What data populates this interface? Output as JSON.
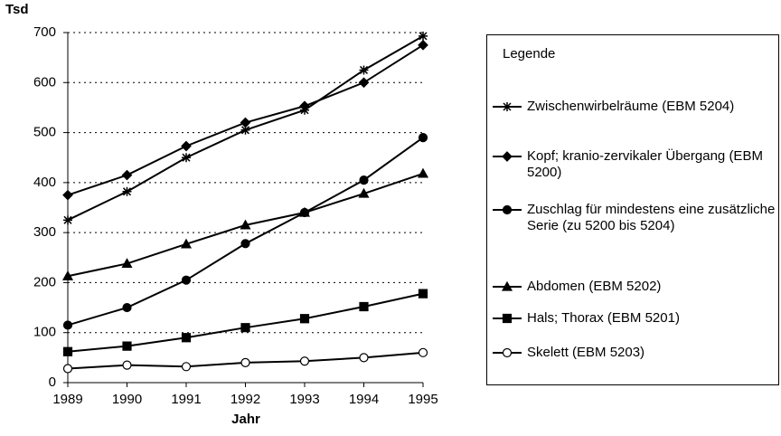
{
  "chart_data": {
    "type": "line",
    "y_label": "Tsd",
    "x_label": "Jahr",
    "legend_title": "Legende",
    "x": [
      1989,
      1990,
      1991,
      1992,
      1993,
      1994,
      1995
    ],
    "xlim": [
      1989,
      1995
    ],
    "xticks": [
      1989,
      1990,
      1991,
      1992,
      1993,
      1994,
      1995
    ],
    "ylim": [
      0,
      700
    ],
    "yticks": [
      0,
      100,
      200,
      300,
      400,
      500,
      600,
      700
    ],
    "grid": true,
    "legend": "right",
    "series": [
      {
        "name": "Zwischenwirbelräume (EBM 5204)",
        "color": "#000000",
        "marker": "star",
        "values": [
          325,
          382,
          450,
          505,
          545,
          625,
          693
        ]
      },
      {
        "name": "Kopf; kranio-zervikaler Übergang (EBM 5200)",
        "color": "#000000",
        "marker": "diamond",
        "values": [
          375,
          415,
          473,
          520,
          553,
          600,
          675
        ]
      },
      {
        "name": "Zuschlag für mindestens eine zusätzliche Serie (zu 5200 bis 5204)",
        "color": "#000000",
        "marker": "circle",
        "values": [
          115,
          150,
          205,
          278,
          340,
          405,
          490
        ]
      },
      {
        "name": "Abdomen (EBM 5202)",
        "color": "#000000",
        "marker": "triangle",
        "values": [
          213,
          238,
          277,
          315,
          340,
          378,
          418
        ]
      },
      {
        "name": "Hals; Thorax (EBM 5201)",
        "color": "#000000",
        "marker": "square",
        "values": [
          62,
          73,
          90,
          110,
          128,
          152,
          178
        ]
      },
      {
        "name": "Skelett (EBM 5203)",
        "color": "#000000",
        "marker": "open-circle",
        "values": [
          28,
          35,
          32,
          40,
          43,
          50,
          60
        ]
      }
    ]
  }
}
